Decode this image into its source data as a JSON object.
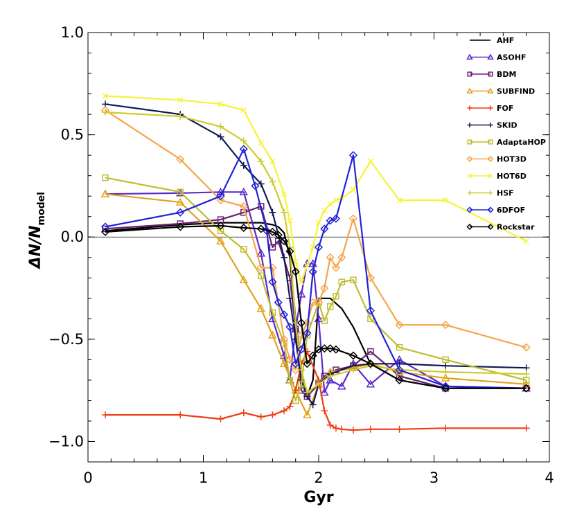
{
  "chart_data": {
    "type": "line",
    "title": "",
    "xlabel": "Gyr",
    "ylabel_main": "ΔN/N",
    "ylabel_sub": "model",
    "xlim": [
      0,
      4
    ],
    "ylim": [
      -1.1,
      1.0
    ],
    "xticks": [
      0,
      1,
      2,
      3,
      4
    ],
    "xtick_labels": [
      "0",
      "1",
      "2",
      "3",
      "4"
    ],
    "yticks": [
      -1.0,
      -0.5,
      0.0,
      0.5,
      1.0
    ],
    "ytick_labels": [
      "−1.0",
      "−0.5",
      "0.0",
      "0.5",
      "1.0"
    ],
    "zero_line": true,
    "grid": false,
    "legend_position": "top-right",
    "series": [
      {
        "name": "AHF",
        "color": "#000000",
        "marker": "none",
        "x": [
          0.15,
          0.8,
          1.15,
          1.35,
          1.5,
          1.6,
          1.65,
          1.7,
          1.75,
          1.8,
          1.85,
          1.9,
          1.95,
          2.0,
          2.1,
          2.2,
          2.3,
          2.45,
          2.7,
          3.1,
          3.8
        ],
        "y": [
          0.03,
          0.06,
          0.07,
          0.07,
          0.07,
          0.06,
          0.05,
          0.02,
          -0.1,
          -0.4,
          -0.65,
          -0.78,
          -0.7,
          -0.3,
          -0.3,
          -0.35,
          -0.44,
          -0.62,
          -0.7,
          -0.74,
          -0.74
        ]
      },
      {
        "name": "ASOHF",
        "color": "#5a2acb",
        "marker": "triangle",
        "x": [
          0.15,
          0.8,
          1.15,
          1.35,
          1.5,
          1.6,
          1.7,
          1.75,
          1.8,
          1.85,
          1.9,
          1.95,
          2.0,
          2.05,
          2.1,
          2.2,
          2.3,
          2.45,
          2.7,
          3.1,
          3.8
        ],
        "y": [
          0.21,
          0.215,
          0.22,
          0.22,
          -0.08,
          -0.4,
          -0.58,
          -0.7,
          -0.45,
          -0.28,
          -0.13,
          -0.13,
          -0.4,
          -0.76,
          -0.7,
          -0.73,
          -0.62,
          -0.72,
          -0.6,
          -0.73,
          -0.74
        ]
      },
      {
        "name": "BDM",
        "color": "#6a2070",
        "marker": "square",
        "x": [
          0.15,
          0.8,
          1.15,
          1.35,
          1.5,
          1.6,
          1.65,
          1.75,
          1.8,
          1.85,
          1.9,
          2.0,
          2.05,
          2.15,
          2.3,
          2.45,
          2.7,
          3.1,
          3.8
        ],
        "y": [
          0.04,
          0.065,
          0.085,
          0.12,
          0.15,
          -0.05,
          -0.02,
          -0.2,
          -0.45,
          -0.75,
          -0.78,
          -0.72,
          -0.68,
          -0.65,
          -0.63,
          -0.56,
          -0.68,
          -0.74,
          -0.74
        ]
      },
      {
        "name": "SUBFIND",
        "color": "#e3a21a",
        "marker": "triangle",
        "x": [
          0.15,
          0.8,
          1.15,
          1.35,
          1.5,
          1.6,
          1.7,
          1.8,
          1.9,
          2.0,
          2.1,
          2.3,
          2.45,
          2.7,
          3.1,
          3.8
        ],
        "y": [
          0.21,
          0.17,
          -0.02,
          -0.21,
          -0.35,
          -0.48,
          -0.62,
          -0.75,
          -0.87,
          -0.72,
          -0.66,
          -0.64,
          -0.62,
          -0.66,
          -0.69,
          -0.72
        ]
      },
      {
        "name": "FOF",
        "color": "#f03b12",
        "marker": "plus",
        "x": [
          0.15,
          0.8,
          1.15,
          1.35,
          1.5,
          1.6,
          1.7,
          1.75,
          1.8,
          1.85,
          1.9,
          2.0,
          2.05,
          2.1,
          2.15,
          2.2,
          2.3,
          2.45,
          2.7,
          3.1,
          3.8
        ],
        "y": [
          -0.87,
          -0.87,
          -0.89,
          -0.86,
          -0.88,
          -0.87,
          -0.85,
          -0.83,
          -0.75,
          -0.62,
          -0.56,
          -0.7,
          -0.85,
          -0.92,
          -0.935,
          -0.94,
          -0.945,
          -0.94,
          -0.94,
          -0.935,
          -0.935
        ]
      },
      {
        "name": "SKID",
        "color": "#101a52",
        "marker": "plus",
        "x": [
          0.15,
          0.8,
          1.15,
          1.35,
          1.5,
          1.6,
          1.7,
          1.75,
          1.8,
          1.85,
          1.9,
          1.95,
          2.0,
          2.1,
          2.3,
          2.45,
          2.7,
          3.1,
          3.8
        ],
        "y": [
          0.65,
          0.6,
          0.49,
          0.35,
          0.26,
          0.12,
          -0.1,
          -0.3,
          -0.5,
          -0.7,
          -0.78,
          -0.82,
          -0.72,
          -0.67,
          -0.63,
          -0.62,
          -0.62,
          -0.63,
          -0.64
        ]
      },
      {
        "name": "AdaptaHOP",
        "color": "#bfbd2e",
        "marker": "square",
        "x": [
          0.15,
          0.8,
          1.15,
          1.35,
          1.5,
          1.6,
          1.7,
          1.75,
          1.8,
          1.85,
          1.9,
          2.0,
          2.05,
          2.1,
          2.15,
          2.2,
          2.3,
          2.45,
          2.7,
          3.1,
          3.8
        ],
        "y": [
          0.29,
          0.22,
          0.03,
          -0.06,
          -0.19,
          -0.37,
          -0.52,
          -0.7,
          -0.8,
          -0.72,
          -0.48,
          -0.32,
          -0.41,
          -0.34,
          -0.29,
          -0.22,
          -0.21,
          -0.4,
          -0.54,
          -0.6,
          -0.7
        ]
      },
      {
        "name": "HOT3D",
        "color": "#f5a54a",
        "marker": "diamond",
        "x": [
          0.15,
          0.8,
          1.15,
          1.35,
          1.5,
          1.6,
          1.7,
          1.75,
          1.8,
          1.85,
          1.9,
          1.95,
          2.0,
          2.05,
          2.1,
          2.15,
          2.2,
          2.3,
          2.45,
          2.7,
          3.1,
          3.8
        ],
        "y": [
          0.62,
          0.38,
          0.18,
          0.15,
          -0.15,
          -0.15,
          -0.5,
          -0.6,
          -0.65,
          -0.48,
          -0.42,
          -0.32,
          -0.32,
          -0.25,
          -0.1,
          -0.15,
          -0.1,
          0.09,
          -0.2,
          -0.43,
          -0.43,
          -0.54
        ]
      },
      {
        "name": "HOT6D",
        "color": "#f7f23a",
        "marker": "cross",
        "x": [
          0.15,
          0.8,
          1.15,
          1.35,
          1.5,
          1.6,
          1.7,
          1.75,
          1.8,
          1.85,
          1.9,
          1.95,
          2.0,
          2.05,
          2.1,
          2.15,
          2.2,
          2.3,
          2.45,
          2.7,
          3.1,
          3.8
        ],
        "y": [
          0.69,
          0.67,
          0.65,
          0.62,
          0.46,
          0.37,
          0.21,
          0.08,
          -0.12,
          -0.22,
          -0.14,
          -0.05,
          0.07,
          0.13,
          0.16,
          0.18,
          0.19,
          0.23,
          0.37,
          0.18,
          0.18,
          -0.02
        ]
      },
      {
        "name": "HSF",
        "color": "#cccc30",
        "marker": "plus",
        "x": [
          0.15,
          0.8,
          1.15,
          1.35,
          1.5,
          1.6,
          1.7,
          1.75,
          1.8,
          1.85,
          1.9,
          2.0,
          2.1,
          2.3,
          2.45,
          2.7,
          3.1,
          3.8
        ],
        "y": [
          0.61,
          0.59,
          0.54,
          0.47,
          0.37,
          0.27,
          0.12,
          -0.05,
          -0.42,
          -0.65,
          -0.76,
          -0.72,
          -0.68,
          -0.65,
          -0.63,
          -0.65,
          -0.66,
          -0.67
        ]
      },
      {
        "name": "6DFOF",
        "color": "#1f22d9",
        "marker": "diamond",
        "x": [
          0.15,
          0.8,
          1.15,
          1.35,
          1.45,
          1.55,
          1.6,
          1.65,
          1.7,
          1.75,
          1.8,
          1.85,
          1.9,
          1.95,
          2.0,
          2.05,
          2.1,
          2.15,
          2.3,
          2.45,
          2.7,
          3.1,
          3.8
        ],
        "y": [
          0.05,
          0.12,
          0.2,
          0.43,
          0.25,
          0.03,
          -0.22,
          -0.32,
          -0.38,
          -0.44,
          -0.62,
          -0.55,
          -0.47,
          -0.17,
          -0.05,
          0.04,
          0.08,
          0.09,
          0.4,
          -0.36,
          -0.65,
          -0.73,
          -0.74
        ]
      },
      {
        "name": "Rockstar",
        "color": "#000000",
        "marker": "diamond",
        "x": [
          0.15,
          0.8,
          1.15,
          1.35,
          1.5,
          1.6,
          1.65,
          1.7,
          1.75,
          1.8,
          1.85,
          1.9,
          1.95,
          2.0,
          2.05,
          2.1,
          2.15,
          2.3,
          2.45,
          2.7,
          3.1,
          3.8
        ],
        "y": [
          0.025,
          0.05,
          0.055,
          0.045,
          0.04,
          0.025,
          0.01,
          -0.02,
          -0.07,
          -0.17,
          -0.42,
          -0.62,
          -0.58,
          -0.55,
          -0.545,
          -0.545,
          -0.55,
          -0.58,
          -0.62,
          -0.7,
          -0.74,
          -0.74
        ]
      }
    ]
  }
}
